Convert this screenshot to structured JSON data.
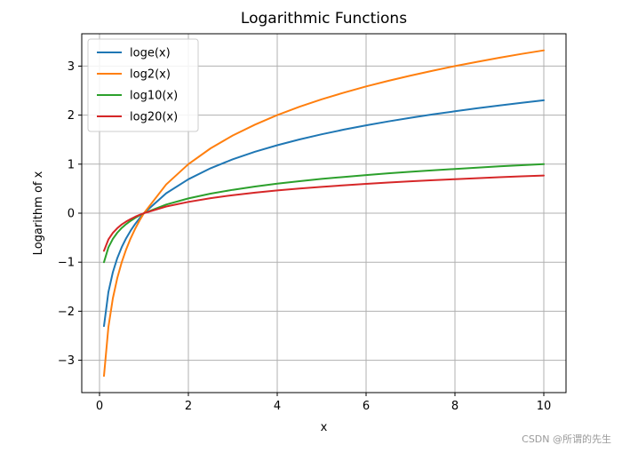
{
  "chart_data": {
    "type": "line",
    "title": "Logarithmic Functions",
    "xlabel": "x",
    "ylabel": "Logarithm of x",
    "xlim": [
      -0.4,
      10.5
    ],
    "ylim": [
      -3.66,
      3.66
    ],
    "xticks": [
      0,
      2,
      4,
      6,
      8,
      10
    ],
    "yticks": [
      -3,
      -2,
      -1,
      0,
      1,
      2,
      3
    ],
    "grid": true,
    "legend_position": "upper left",
    "x": [
      0.1,
      0.2,
      0.3,
      0.4,
      0.5,
      0.6,
      0.7,
      0.8,
      0.9,
      1.0,
      1.5,
      2.0,
      2.5,
      3.0,
      3.5,
      4.0,
      4.5,
      5.0,
      5.5,
      6.0,
      6.5,
      7.0,
      7.5,
      8.0,
      8.5,
      9.0,
      9.5,
      10.0
    ],
    "series": [
      {
        "name": "loge(x)",
        "color": "#1f77b4",
        "values": [
          -2.303,
          -1.609,
          -1.204,
          -0.916,
          -0.693,
          -0.511,
          -0.357,
          -0.223,
          -0.105,
          0.0,
          0.405,
          0.693,
          0.916,
          1.099,
          1.253,
          1.386,
          1.504,
          1.609,
          1.705,
          1.792,
          1.872,
          1.946,
          2.015,
          2.079,
          2.14,
          2.197,
          2.251,
          2.303
        ]
      },
      {
        "name": "log2(x)",
        "color": "#ff7f0e",
        "values": [
          -3.322,
          -2.322,
          -1.737,
          -1.322,
          -1.0,
          -0.737,
          -0.515,
          -0.322,
          -0.152,
          0.0,
          0.585,
          1.0,
          1.322,
          1.585,
          1.807,
          2.0,
          2.17,
          2.322,
          2.459,
          2.585,
          2.7,
          2.807,
          2.907,
          3.0,
          3.087,
          3.17,
          3.248,
          3.322
        ]
      },
      {
        "name": "log10(x)",
        "color": "#2ca02c",
        "values": [
          -1.0,
          -0.699,
          -0.523,
          -0.398,
          -0.301,
          -0.222,
          -0.155,
          -0.097,
          -0.046,
          0.0,
          0.176,
          0.301,
          0.398,
          0.477,
          0.544,
          0.602,
          0.653,
          0.699,
          0.74,
          0.778,
          0.813,
          0.845,
          0.875,
          0.903,
          0.929,
          0.954,
          0.978,
          1.0
        ]
      },
      {
        "name": "log20(x)",
        "color": "#d62728",
        "values": [
          -0.769,
          -0.537,
          -0.402,
          -0.306,
          -0.231,
          -0.171,
          -0.119,
          -0.074,
          -0.035,
          0.0,
          0.135,
          0.231,
          0.306,
          0.367,
          0.418,
          0.463,
          0.502,
          0.537,
          0.569,
          0.598,
          0.625,
          0.65,
          0.673,
          0.694,
          0.714,
          0.733,
          0.752,
          0.769
        ]
      }
    ]
  },
  "watermark": "CSDN @所谓的先生"
}
